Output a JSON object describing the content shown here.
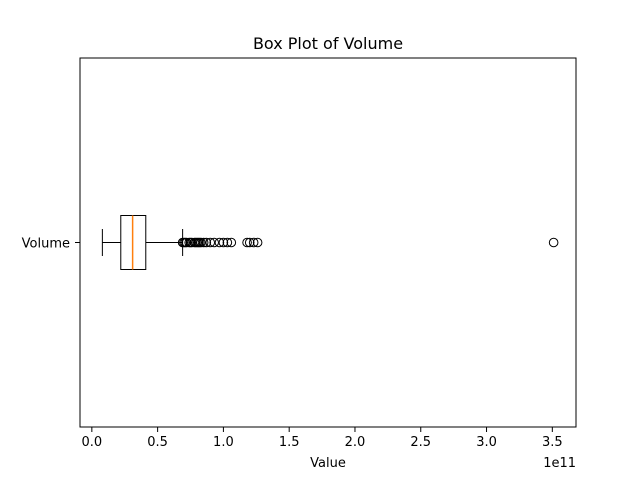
{
  "chart_data": {
    "type": "box",
    "orientation": "horizontal",
    "title": "Box Plot of Volume",
    "xlabel": "Value",
    "ylabel": "",
    "x_scale_label": "1e11",
    "xlim": [
      -0.09,
      3.68
    ],
    "x_ticks": [
      0.0,
      0.5,
      1.0,
      1.5,
      2.0,
      2.5,
      3.0,
      3.5
    ],
    "x_tick_labels": [
      "0.0",
      "0.5",
      "1.0",
      "1.5",
      "2.0",
      "2.5",
      "3.0",
      "3.5"
    ],
    "categories": [
      "Volume"
    ],
    "grid": false,
    "colors": {
      "median": "#ff7f0e",
      "box": "#000000"
    },
    "series": [
      {
        "category": "Volume",
        "whisker_low": 0.08,
        "q1": 0.22,
        "median": 0.31,
        "q3": 0.41,
        "whisker_high": 0.69,
        "outliers": [
          0.69,
          0.7,
          0.71,
          0.72,
          0.74,
          0.75,
          0.76,
          0.78,
          0.79,
          0.8,
          0.81,
          0.82,
          0.83,
          0.85,
          0.87,
          0.9,
          0.93,
          0.97,
          1.0,
          1.03,
          1.06,
          1.18,
          1.2,
          1.23,
          1.26,
          3.51
        ]
      }
    ]
  }
}
